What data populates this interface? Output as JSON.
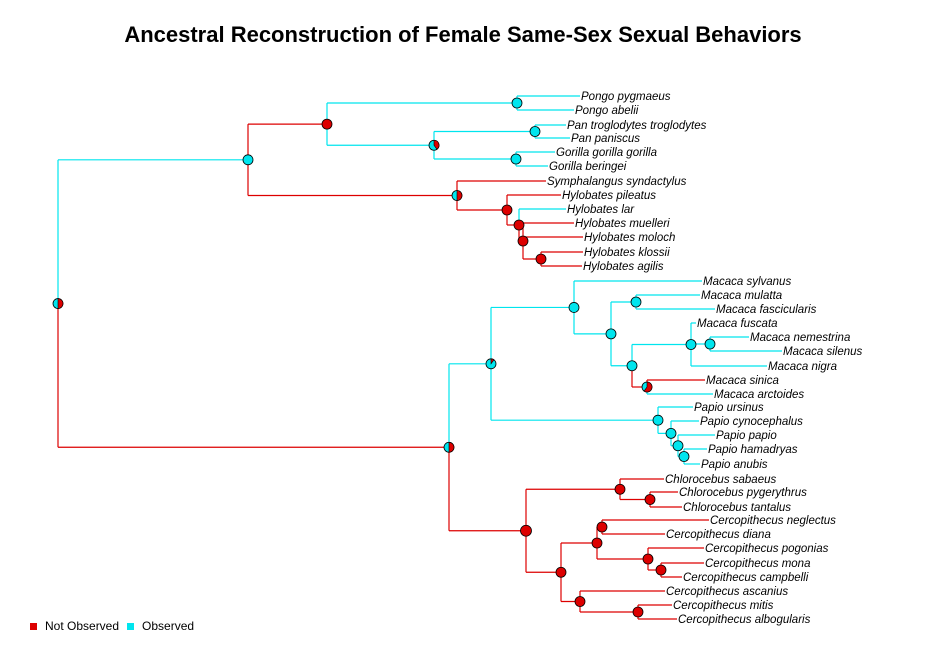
{
  "title": "Ancestral Reconstruction of Female Same-Sex Sexual Behaviors",
  "colors": {
    "not_observed": "#dd0000",
    "observed": "#00e5ee"
  },
  "legend": [
    {
      "label": "Not Observed",
      "color": "#dd0000"
    },
    {
      "label": "Observed",
      "color": "#00e5ee"
    }
  ],
  "taxa": [
    {
      "name": "Pongo pygmaeus",
      "state": "observed"
    },
    {
      "name": "Pongo abelii",
      "state": "observed"
    },
    {
      "name": "Pan troglodytes troglodytes",
      "state": "observed"
    },
    {
      "name": "Pan paniscus",
      "state": "observed"
    },
    {
      "name": "Gorilla gorilla gorilla",
      "state": "observed"
    },
    {
      "name": "Gorilla beringei",
      "state": "observed"
    },
    {
      "name": "Symphalangus syndactylus",
      "state": "not_observed"
    },
    {
      "name": "Hylobates pileatus",
      "state": "not_observed"
    },
    {
      "name": "Hylobates lar",
      "state": "observed"
    },
    {
      "name": "Hylobates muelleri",
      "state": "not_observed"
    },
    {
      "name": "Hylobates moloch",
      "state": "not_observed"
    },
    {
      "name": "Hylobates klossii",
      "state": "not_observed"
    },
    {
      "name": "Hylobates agilis",
      "state": "not_observed"
    },
    {
      "name": "Macaca sylvanus",
      "state": "observed"
    },
    {
      "name": "Macaca mulatta",
      "state": "observed"
    },
    {
      "name": "Macaca fascicularis",
      "state": "observed"
    },
    {
      "name": "Macaca fuscata",
      "state": "observed"
    },
    {
      "name": "Macaca nemestrina",
      "state": "observed"
    },
    {
      "name": "Macaca silenus",
      "state": "observed"
    },
    {
      "name": "Macaca nigra",
      "state": "observed"
    },
    {
      "name": "Macaca sinica",
      "state": "not_observed"
    },
    {
      "name": "Macaca arctoides",
      "state": "observed"
    },
    {
      "name": "Papio ursinus",
      "state": "observed"
    },
    {
      "name": "Papio cynocephalus",
      "state": "observed"
    },
    {
      "name": "Papio papio",
      "state": "observed"
    },
    {
      "name": "Papio hamadryas",
      "state": "observed"
    },
    {
      "name": "Papio anubis",
      "state": "observed"
    },
    {
      "name": "Chlorocebus sabaeus",
      "state": "not_observed"
    },
    {
      "name": "Chlorocebus pygerythrus",
      "state": "not_observed"
    },
    {
      "name": "Chlorocebus tantalus",
      "state": "not_observed"
    },
    {
      "name": "Cercopithecus neglectus",
      "state": "not_observed"
    },
    {
      "name": "Cercopithecus diana",
      "state": "not_observed"
    },
    {
      "name": "Cercopithecus pogonias",
      "state": "not_observed"
    },
    {
      "name": "Cercopithecus mona",
      "state": "not_observed"
    },
    {
      "name": "Cercopithecus campbelli",
      "state": "not_observed"
    },
    {
      "name": "Cercopithecus ascanius",
      "state": "not_observed"
    },
    {
      "name": "Cercopithecus mitis",
      "state": "not_observed"
    },
    {
      "name": "Cercopithecus albogularis",
      "state": "not_observed"
    }
  ],
  "ancestral_nodes": [
    {
      "node": "root",
      "p_not_observed": 0.5
    },
    {
      "node": "hominoids",
      "p_not_observed": 0.0
    },
    {
      "node": "great-apes",
      "p_not_observed": 1.0
    },
    {
      "node": "pongo",
      "p_not_observed": 0.0
    },
    {
      "node": "african-apes",
      "p_not_observed": 0.4
    },
    {
      "node": "pan",
      "p_not_observed": 0.0
    },
    {
      "node": "gorilla",
      "p_not_observed": 0.0
    },
    {
      "node": "hylobatids",
      "p_not_observed": 0.5
    },
    {
      "node": "hylobates",
      "p_not_observed": 1.0
    },
    {
      "node": "hylobates-b",
      "p_not_observed": 1.0
    },
    {
      "node": "hylobates-c",
      "p_not_observed": 1.0
    },
    {
      "node": "klossii-agilis",
      "p_not_observed": 1.0
    },
    {
      "node": "cercopithecids",
      "p_not_observed": 0.5
    },
    {
      "node": "papionins",
      "p_not_observed": 0.1
    },
    {
      "node": "macaca",
      "p_not_observed": 0.0
    },
    {
      "node": "macaca-a",
      "p_not_observed": 0.0
    },
    {
      "node": "mulatta-fascicularis",
      "p_not_observed": 0.0
    },
    {
      "node": "macaca-b",
      "p_not_observed": 0.0
    },
    {
      "node": "silenus-group",
      "p_not_observed": 0.0
    },
    {
      "node": "nemestrina-silenus",
      "p_not_observed": 0.0
    },
    {
      "node": "sinica-arctoides",
      "p_not_observed": 0.6
    },
    {
      "node": "papio",
      "p_not_observed": 0.0
    },
    {
      "node": "papio-a",
      "p_not_observed": 0.0
    },
    {
      "node": "papio-b",
      "p_not_observed": 0.0
    },
    {
      "node": "hamadryas-anubis",
      "p_not_observed": 0.0
    },
    {
      "node": "guenons",
      "p_not_observed": 1.0
    },
    {
      "node": "chlorocebus",
      "p_not_observed": 1.0
    },
    {
      "node": "pygerythrus-tantalus",
      "p_not_observed": 1.0
    },
    {
      "node": "cercopithecus",
      "p_not_observed": 1.0
    },
    {
      "node": "cercopithecus-a",
      "p_not_observed": 1.0
    },
    {
      "node": "neglectus-diana",
      "p_not_observed": 1.0
    },
    {
      "node": "mona-group",
      "p_not_observed": 1.0
    },
    {
      "node": "mona-campbelli",
      "p_not_observed": 1.0
    },
    {
      "node": "ascanius-group",
      "p_not_observed": 1.0
    },
    {
      "node": "mitis-albogularis",
      "p_not_observed": 1.0
    }
  ]
}
